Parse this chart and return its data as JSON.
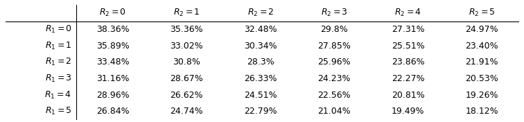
{
  "col_headers": [
    "$R_2=0$",
    "$R_2=1$",
    "$R_2=2$",
    "$R_2=3$",
    "$R_2=4$",
    "$R_2=5$"
  ],
  "row_headers": [
    "$R_1=0$",
    "$R_1=1$",
    "$R_1=2$",
    "$R_1=3$",
    "$R_1=4$",
    "$R_1=5$"
  ],
  "table_data": [
    [
      "38.36%",
      "35.36%",
      "32.48%",
      "29.8%",
      "27.31%",
      "24.97%"
    ],
    [
      "35.89%",
      "33.02%",
      "30.34%",
      "27.85%",
      "25.51%",
      "23.40%"
    ],
    [
      "33.48%",
      "30.8%",
      "28.3%",
      "25.96%",
      "23.86%",
      "21.91%"
    ],
    [
      "31.16%",
      "28.67%",
      "26.33%",
      "24.23%",
      "22.27%",
      "20.53%"
    ],
    [
      "28.96%",
      "26.62%",
      "24.51%",
      "22.56%",
      "20.81%",
      "19.26%"
    ],
    [
      "26.84%",
      "24.74%",
      "22.79%",
      "21.04%",
      "19.49%",
      "18.12%"
    ]
  ],
  "background_color": "#ffffff",
  "line_color": "#000000",
  "text_color": "#000000",
  "font_size": 9.0,
  "fig_width": 7.56,
  "fig_height": 1.76,
  "dpi": 100
}
